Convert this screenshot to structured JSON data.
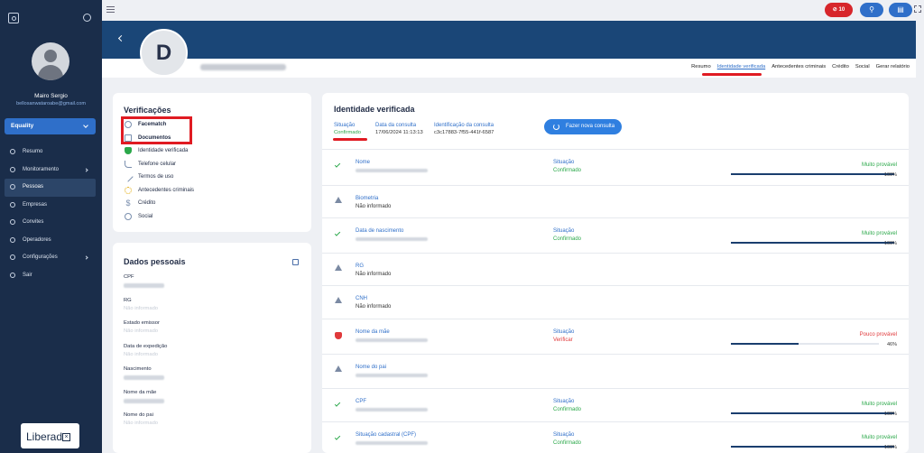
{
  "sidebar": {
    "user_name": "Mairo Sergio",
    "user_email": "bellosanwataroabe@gmail.com",
    "company_select": "Equality",
    "items": [
      {
        "label": "Resumo",
        "icon": "clock-icon",
        "arrow": false,
        "active": false
      },
      {
        "label": "Monitoramento",
        "icon": "globe-icon",
        "arrow": true,
        "active": false
      },
      {
        "label": "Pessoas",
        "icon": "people-icon",
        "arrow": false,
        "active": true
      },
      {
        "label": "Empresas",
        "icon": "building-icon",
        "arrow": false,
        "active": false
      },
      {
        "label": "Convites",
        "icon": "person-add-icon",
        "arrow": false,
        "active": false
      },
      {
        "label": "Operadores",
        "icon": "group-icon",
        "arrow": false,
        "active": false
      },
      {
        "label": "Configurações",
        "icon": "gear-icon",
        "arrow": true,
        "active": false
      },
      {
        "label": "Sair",
        "icon": "logout-icon",
        "arrow": false,
        "active": false
      }
    ],
    "brand": "Liberad"
  },
  "topbar": {
    "alert_count": "10"
  },
  "profile": {
    "initial": "D",
    "tabs": [
      "Resumo",
      "Identidade verificada",
      "Antecedentes criminais",
      "Crédito",
      "Social",
      "Gerar relatório"
    ],
    "active_tab": "Identidade verificada"
  },
  "verificacoes": {
    "title": "Verificações",
    "items": [
      {
        "label": "Facematch",
        "bold": true
      },
      {
        "label": "Documentos",
        "bold": true
      },
      {
        "label": "Identidade verificada",
        "bold": false
      },
      {
        "label": "Telefone celular",
        "bold": false
      },
      {
        "label": "Termos de uso",
        "bold": false
      },
      {
        "label": "Antecedentes criminais",
        "bold": false
      },
      {
        "label": "Crédito",
        "bold": false
      },
      {
        "label": "Social",
        "bold": false
      }
    ]
  },
  "dados": {
    "title": "Dados pessoais",
    "fields": [
      {
        "label": "CPF",
        "value": null
      },
      {
        "label": "RG",
        "value": "Não informado"
      },
      {
        "label": "Estado emissor",
        "value": "Não informado"
      },
      {
        "label": "Data de expedição",
        "value": "Não informado"
      },
      {
        "label": "Nascimento",
        "value": null
      },
      {
        "label": "Nome da mãe",
        "value": null
      },
      {
        "label": "Nome do pai",
        "value": "Não informado"
      }
    ]
  },
  "identidade": {
    "title": "Identidade verificada",
    "situacao_label": "Situação",
    "situacao_value": "Confirmado",
    "data_label": "Data da consulta",
    "data_value": "17/06/2024 11:13:13",
    "id_label": "Identificação da consulta",
    "id_value": "c3c17883-7f55-441f-6587",
    "new_button": "Fazer nova consulta",
    "rows": [
      {
        "label": "Nome",
        "value": null,
        "status": "ok",
        "situacao": "Confirmado",
        "prob": "Muito provável",
        "pct": "100%",
        "fill": 1.0
      },
      {
        "label": "Biometria",
        "value": "Não informado",
        "status": "warn"
      },
      {
        "label": "Data de nascimento",
        "value": null,
        "status": "ok",
        "situacao": "Confirmado",
        "prob": "Muito provável",
        "pct": "100%",
        "fill": 1.0
      },
      {
        "label": "RG",
        "value": "Não informado",
        "status": "warn"
      },
      {
        "label": "CNH",
        "value": "Não informado",
        "status": "warn"
      },
      {
        "label": "Nome da mãe",
        "value": null,
        "status": "bad",
        "situacao": "Verificar",
        "prob": "Pouco provável",
        "pct": "46%",
        "fill": 0.46
      },
      {
        "label": "Nome do pai",
        "value": null,
        "status": "warn"
      },
      {
        "label": "CPF",
        "value": null,
        "status": "ok",
        "situacao": "Confirmado",
        "prob": "Muito provável",
        "pct": "100%",
        "fill": 1.0
      },
      {
        "label": "Situação cadastral (CPF)",
        "value": null,
        "status": "ok",
        "situacao": "Confirmado",
        "prob": "Muito provável",
        "pct": "100%",
        "fill": 1.0
      }
    ],
    "situacao_col_label": "Situação"
  },
  "colors": {
    "sidebar": "#1a2d4a",
    "accent": "#2f6fc9",
    "hero": "#1a4677",
    "ok": "#2ba84a",
    "bad": "#e0393b"
  }
}
